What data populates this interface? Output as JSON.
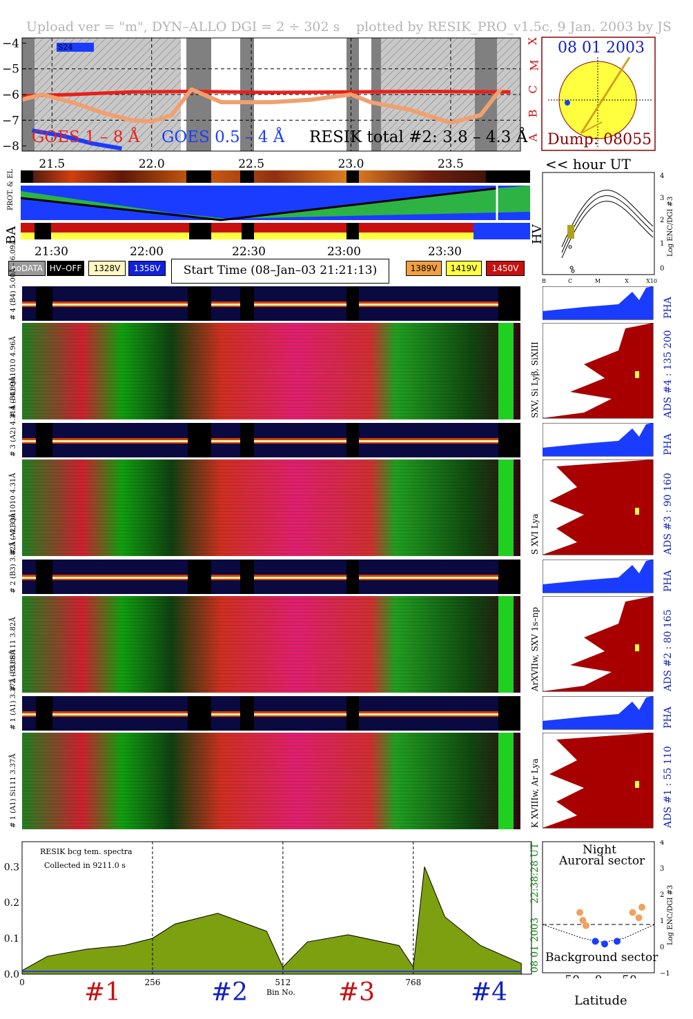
{
  "header": {
    "left": "Upload ver = \"m\", DYN–ALLO DGI =   2 ÷ 302 s",
    "right": "plotted by RESIK_PRO_v1.5c, 9 Jan. 2003 by JS"
  },
  "goes_panel": {
    "yticks": [
      "−4",
      "−5",
      "−6",
      "−7",
      "−8"
    ],
    "class_letters": [
      "X",
      "M",
      "C",
      "B",
      "A"
    ],
    "xticks": [
      "21.5",
      "22.0",
      "22.5",
      "23.0",
      "23.5"
    ],
    "xtick_values": [
      21.5,
      22.0,
      22.5,
      23.0,
      23.5
    ],
    "xlim": [
      21.35,
      23.85
    ],
    "ylim": [
      -8.2,
      -3.8
    ],
    "label_s24": "S24",
    "legend_goes1": "GOES 1 – 8 Å",
    "legend_goes05": "GOES 0.5 – 4 Å",
    "legend_resik": "RESIK total #2: 3.8 – 4.3 Å",
    "colors": {
      "goes1": "#e8201a",
      "goes05": "#1a3cff",
      "resik": "#f0a070",
      "resik2": "#8a8a10"
    }
  },
  "sun_panel": {
    "date": "08 01 2003",
    "dump": "Dump: 08055",
    "hour_label": "<< hour UT"
  },
  "status_panel": {
    "label_prot": "PROT. & EL",
    "label_ba": "BA",
    "label_hv": "HV",
    "time_ticks": [
      "21:30",
      "22:00",
      "22:30",
      "23:00",
      "23:30"
    ]
  },
  "legend_boxes": {
    "nodata": "noDATA",
    "hvoff": "HV–OFF",
    "v1328": "1328V",
    "v1358": "1358V",
    "start": "Start Time (08–Jan–03 21:21:13)",
    "v1389": "1389V",
    "v1419": "1419V",
    "v1450": "1450V",
    "colors": {
      "nodata": "#999999",
      "hvoff": "#000000",
      "v1328": "#fff8c0",
      "v1358": "#1020e0",
      "v1389": "#f0a040",
      "v1419": "#ffff40",
      "v1450": "#c81010"
    }
  },
  "hv_plot": {
    "xticks": [
      "B",
      "C",
      "M",
      "X",
      "X10"
    ],
    "yticks": [
      "4",
      "3",
      "2",
      "1",
      "0"
    ],
    "ylabel": "Log ENC/DGI #3"
  },
  "channels": [
    {
      "pha_label": "# 4 (B4) 5.00Å – 6.09Å",
      "spec_label": "# 4 (B4) Qu1010 4.96Å",
      "ads": "ADS #4 :   135 200",
      "lines": "SXV, Si Lyβ, SiXIII",
      "pha": "PHA"
    },
    {
      "pha_label": "# 3 (A2) 4.31Å – 4.89Å",
      "spec_label": "# 3 (A2) Qu1010  4.31Å",
      "ads": "ADS #3 :    90 160",
      "lines": "S XVI Lya",
      "pha": "PHA"
    },
    {
      "pha_label": "# 2 (B3) 3.82Å – 4.33Å",
      "spec_label": "# 2 (B3) Si111  3.82Å",
      "ads": "ADS #2 :    80 165",
      "lines": "ArXVIIw, SXV 1s–np",
      "pha": "PHA"
    },
    {
      "pha_label": "# 1 (A1) 3.37Å – 3.88Å",
      "spec_label": "# 1 (A1) Si111  3.37Å",
      "ads": "ADS #1 :    55 110",
      "lines": "K XVIIIw, Ar Lya",
      "pha": "PHA"
    }
  ],
  "bottom_plot": {
    "note1": "RESIK bcg tem. spectra",
    "note2": "Collected in  9211.0 s",
    "yticks": [
      "0.3",
      "0.2",
      "0.1",
      "0.0"
    ],
    "xticks": [
      "0",
      "256",
      "512",
      "768"
    ],
    "xlabel": "Bin No.",
    "time": "22:38:28 UT",
    "date": "08 01 2003",
    "segments": [
      "#1",
      "#2",
      "#3",
      "#4"
    ]
  },
  "chart_data": [
    {
      "type": "line",
      "xlabel": "<< hour UT",
      "ylabel": "",
      "xlim": [
        21.35,
        23.85
      ],
      "ylim": [
        -8.2,
        -3.8
      ],
      "series": [
        {
          "name": "GOES 1 – 8 Å",
          "x": [
            21.35,
            21.6,
            21.9,
            22.2,
            22.6,
            23.0,
            23.4,
            23.8
          ],
          "values": [
            -6.05,
            -6.0,
            -5.9,
            -5.88,
            -5.92,
            -5.9,
            -5.88,
            -5.9
          ]
        },
        {
          "name": "GOES 0.5 – 4 Å",
          "x": [
            21.4,
            21.55,
            21.7,
            21.85
          ],
          "values": [
            -7.4,
            -7.6,
            -7.9,
            -8.1
          ]
        },
        {
          "name": "RESIK total #2: 3.8 – 4.3 Å",
          "x": [
            21.35,
            21.45,
            21.6,
            21.75,
            21.9,
            22.0,
            22.1,
            22.2,
            22.35,
            22.6,
            22.8,
            23.0,
            23.1,
            23.3,
            23.5,
            23.65,
            23.75
          ],
          "values": [
            -6.2,
            -6.0,
            -6.3,
            -6.7,
            -7.0,
            -7.05,
            -6.8,
            -5.8,
            -6.3,
            -6.3,
            -6.2,
            -6.0,
            -6.3,
            -6.6,
            -7.1,
            -6.8,
            -5.8
          ]
        }
      ]
    },
    {
      "type": "line",
      "xlabel": "Bin No.",
      "xlim": [
        0,
        1000
      ],
      "ylim": [
        0,
        0.37
      ],
      "series": [
        {
          "name": "",
          "x": [
            0,
            50,
            128,
            200,
            256,
            300,
            384,
            480,
            512,
            560,
            640,
            740,
            768,
            790,
            830,
            900,
            980
          ],
          "values": [
            0.01,
            0.05,
            0.07,
            0.08,
            0.1,
            0.14,
            0.17,
            0.12,
            0.02,
            0.09,
            0.11,
            0.08,
            0.02,
            0.3,
            0.16,
            0.08,
            0.03
          ]
        }
      ]
    },
    {
      "type": "scatter",
      "xlabel": "Latitude",
      "ylabel": "Log ENC/DGI #3",
      "xlim": [
        -90,
        90
      ],
      "ylim": [
        -1,
        4
      ],
      "series": [
        {
          "name": "Auroral sector",
          "x": [
            -30,
            -25,
            -20,
            55,
            65,
            70
          ],
          "values": [
            1.3,
            1.0,
            0.8,
            1.3,
            1.1,
            1.5
          ]
        },
        {
          "name": "Background sector",
          "x": [
            -5,
            10,
            30
          ],
          "values": [
            0.2,
            0.1,
            0.2
          ]
        }
      ]
    }
  ],
  "bottom_right": {
    "night": "Night",
    "auroral": "Auroral sector",
    "background": "Background sector",
    "xlabel": "Latitude",
    "ylabel": "Log ENC/DGI #3",
    "xticks": [
      "−50",
      "0",
      "50"
    ],
    "yticks": [
      "4",
      "3",
      "2",
      "1",
      "0",
      "−1"
    ]
  }
}
